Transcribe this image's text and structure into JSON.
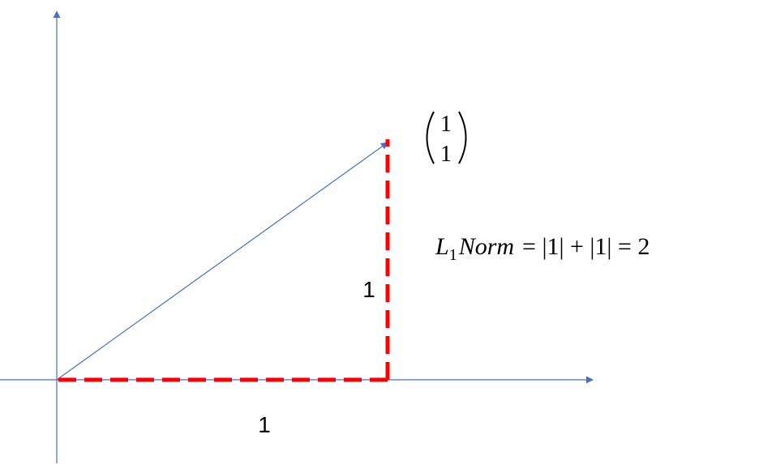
{
  "vector": {
    "top": "1",
    "bottom": "1"
  },
  "formula": {
    "base": "L",
    "subscript": "1",
    "name": "Norm",
    "expression": "= |1| + |1| = 2"
  },
  "labels": {
    "vertical_side": "1",
    "horizontal_side": "1"
  }
}
